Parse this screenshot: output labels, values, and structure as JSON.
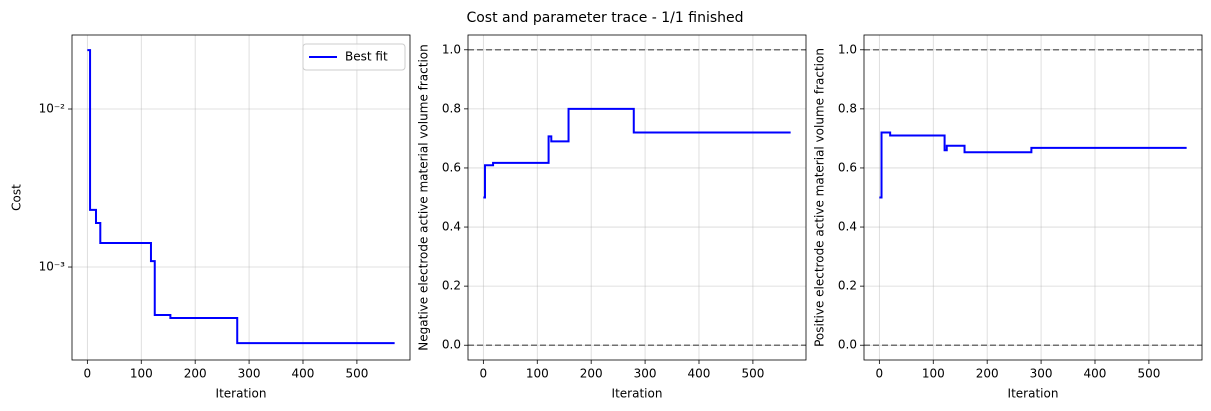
{
  "title": "Cost and parameter trace - 1/1 finished",
  "chart_data": [
    {
      "type": "line",
      "xlabel": "Iteration",
      "ylabel": "Cost",
      "yscale": "log",
      "grid": true,
      "legend": "upper right",
      "xlim": [
        -28.5,
        598.5
      ],
      "ylim": [
        0.000258,
        0.0294
      ],
      "xticks": [
        0,
        100,
        200,
        300,
        400,
        500
      ],
      "yticks": [
        {
          "value": 0.001,
          "label": "10⁻³"
        },
        {
          "value": 0.01,
          "label": "10⁻²"
        }
      ],
      "series": [
        {
          "name": "Best fit",
          "color": "#0000ff",
          "x": [
            0,
            5,
            5,
            16,
            16,
            24,
            24,
            118,
            118,
            125,
            125,
            154,
            154,
            278,
            278,
            570
          ],
          "values": [
            0.0236,
            0.0236,
            0.0023,
            0.0023,
            0.0019,
            0.0019,
            0.00142,
            0.00142,
            0.00109,
            0.00109,
            0.000497,
            0.000497,
            0.000476,
            0.000476,
            0.00033,
            0.00033
          ]
        }
      ]
    },
    {
      "type": "line",
      "xlabel": "Iteration",
      "ylabel": "Negative electrode active material volume fraction",
      "grid": true,
      "xlim": [
        -28.5,
        598.5
      ],
      "ylim": [
        -0.05,
        1.05
      ],
      "xticks": [
        0,
        100,
        200,
        300,
        400,
        500
      ],
      "yticks": [
        {
          "value": 0,
          "label": "0.0"
        },
        0.2,
        0.4,
        0.6,
        0.8,
        {
          "value": 1,
          "label": "1.0"
        }
      ],
      "hlines": [
        0,
        1
      ],
      "hline_color": "#707070",
      "series": [
        {
          "color": "#0000ff",
          "x": [
            0,
            3,
            3,
            18,
            18,
            121,
            121,
            126,
            126,
            158,
            158,
            279,
            279,
            570
          ],
          "values": [
            0.5,
            0.5,
            0.609,
            0.609,
            0.617,
            0.617,
            0.707,
            0.707,
            0.69,
            0.69,
            0.8,
            0.8,
            0.72,
            0.72
          ]
        }
      ]
    },
    {
      "type": "line",
      "xlabel": "Iteration",
      "ylabel": "Positive electrode active material volume fraction",
      "grid": true,
      "xlim": [
        -28.5,
        598.5
      ],
      "ylim": [
        -0.05,
        1.05
      ],
      "xticks": [
        0,
        100,
        200,
        300,
        400,
        500
      ],
      "yticks": [
        {
          "value": 0,
          "label": "0.0"
        },
        0.2,
        0.4,
        0.6,
        0.8,
        {
          "value": 1,
          "label": "1.0"
        }
      ],
      "hlines": [
        0,
        1
      ],
      "hline_color": "#707070",
      "series": [
        {
          "color": "#0000ff",
          "x": [
            0,
            4,
            4,
            20,
            20,
            121,
            121,
            125,
            125,
            158,
            158,
            282,
            282,
            570
          ],
          "values": [
            0.5,
            0.5,
            0.72,
            0.72,
            0.71,
            0.71,
            0.66,
            0.66,
            0.675,
            0.675,
            0.653,
            0.653,
            0.668,
            0.668
          ]
        }
      ]
    }
  ]
}
